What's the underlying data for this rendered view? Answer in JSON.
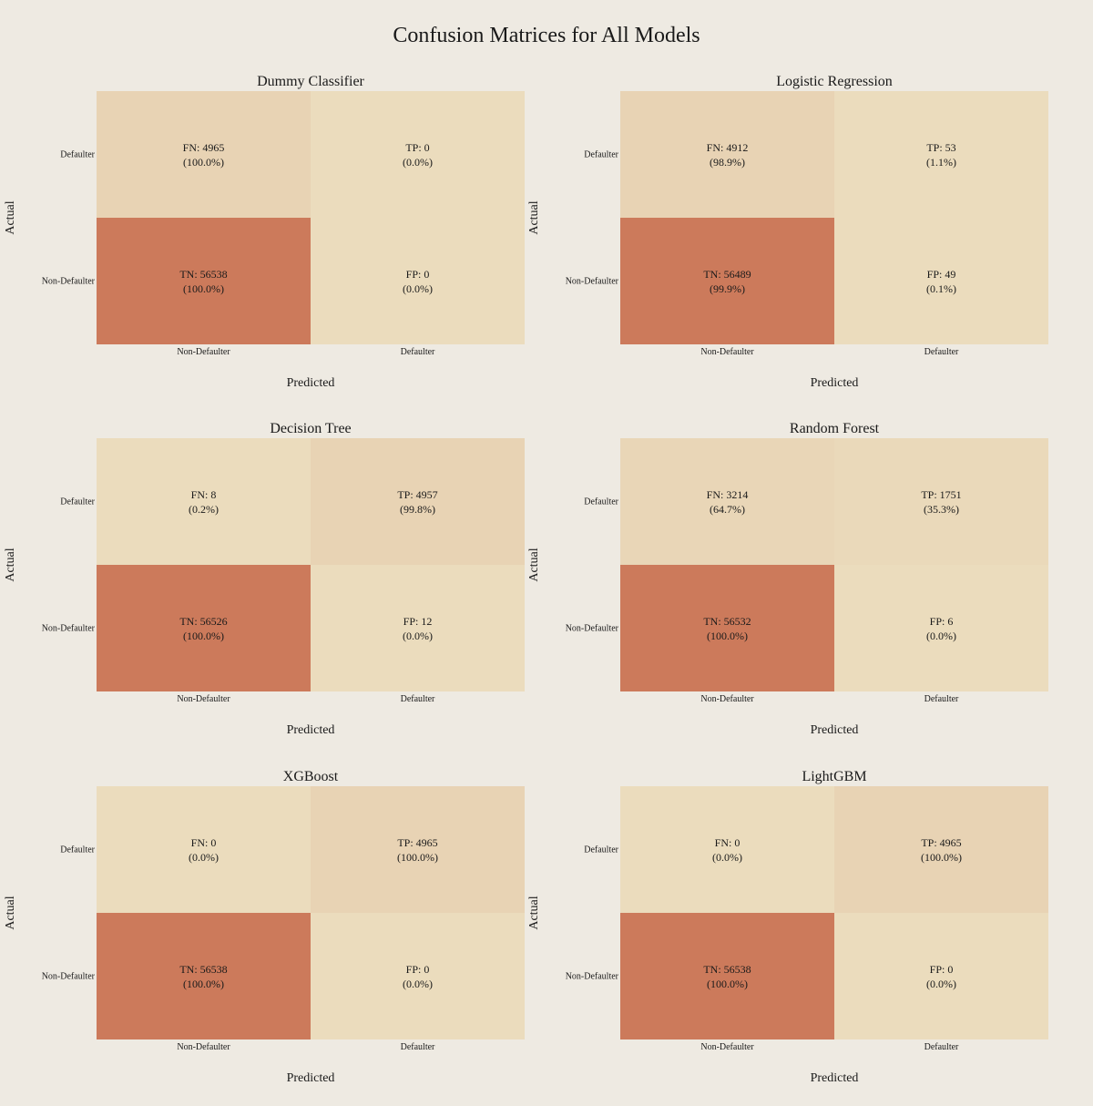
{
  "title": "Confusion Matrices for All Models",
  "colors": {
    "background": "#EEEAE2",
    "scale_low": "#EBDCBD",
    "scale_high": "#CC7A5B"
  },
  "chart_data": [
    {
      "type": "heatmap",
      "title": "Dummy Classifier",
      "xlabel": "Predicted",
      "ylabel": "Actual",
      "x_categories": [
        "Non-Defaulter",
        "Defaulter"
      ],
      "y_categories": [
        "Non-Defaulter",
        "Defaulter"
      ],
      "cells": [
        {
          "actual": "Defaulter",
          "predicted": "Non-Defaulter",
          "label": "FN",
          "count": 4965,
          "percent": "100.0%"
        },
        {
          "actual": "Defaulter",
          "predicted": "Defaulter",
          "label": "TP",
          "count": 0,
          "percent": "0.0%"
        },
        {
          "actual": "Non-Defaulter",
          "predicted": "Non-Defaulter",
          "label": "TN",
          "count": 56538,
          "percent": "100.0%"
        },
        {
          "actual": "Non-Defaulter",
          "predicted": "Defaulter",
          "label": "FP",
          "count": 0,
          "percent": "0.0%"
        }
      ]
    },
    {
      "type": "heatmap",
      "title": "Logistic Regression",
      "xlabel": "Predicted",
      "ylabel": "Actual",
      "x_categories": [
        "Non-Defaulter",
        "Defaulter"
      ],
      "y_categories": [
        "Non-Defaulter",
        "Defaulter"
      ],
      "cells": [
        {
          "actual": "Defaulter",
          "predicted": "Non-Defaulter",
          "label": "FN",
          "count": 4912,
          "percent": "98.9%"
        },
        {
          "actual": "Defaulter",
          "predicted": "Defaulter",
          "label": "TP",
          "count": 53,
          "percent": "1.1%"
        },
        {
          "actual": "Non-Defaulter",
          "predicted": "Non-Defaulter",
          "label": "TN",
          "count": 56489,
          "percent": "99.9%"
        },
        {
          "actual": "Non-Defaulter",
          "predicted": "Defaulter",
          "label": "FP",
          "count": 49,
          "percent": "0.1%"
        }
      ]
    },
    {
      "type": "heatmap",
      "title": "Decision Tree",
      "xlabel": "Predicted",
      "ylabel": "Actual",
      "x_categories": [
        "Non-Defaulter",
        "Defaulter"
      ],
      "y_categories": [
        "Non-Defaulter",
        "Defaulter"
      ],
      "cells": [
        {
          "actual": "Defaulter",
          "predicted": "Non-Defaulter",
          "label": "FN",
          "count": 8,
          "percent": "0.2%"
        },
        {
          "actual": "Defaulter",
          "predicted": "Defaulter",
          "label": "TP",
          "count": 4957,
          "percent": "99.8%"
        },
        {
          "actual": "Non-Defaulter",
          "predicted": "Non-Defaulter",
          "label": "TN",
          "count": 56526,
          "percent": "100.0%"
        },
        {
          "actual": "Non-Defaulter",
          "predicted": "Defaulter",
          "label": "FP",
          "count": 12,
          "percent": "0.0%"
        }
      ]
    },
    {
      "type": "heatmap",
      "title": "Random Forest",
      "xlabel": "Predicted",
      "ylabel": "Actual",
      "x_categories": [
        "Non-Defaulter",
        "Defaulter"
      ],
      "y_categories": [
        "Non-Defaulter",
        "Defaulter"
      ],
      "cells": [
        {
          "actual": "Defaulter",
          "predicted": "Non-Defaulter",
          "label": "FN",
          "count": 3214,
          "percent": "64.7%"
        },
        {
          "actual": "Defaulter",
          "predicted": "Defaulter",
          "label": "TP",
          "count": 1751,
          "percent": "35.3%"
        },
        {
          "actual": "Non-Defaulter",
          "predicted": "Non-Defaulter",
          "label": "TN",
          "count": 56532,
          "percent": "100.0%"
        },
        {
          "actual": "Non-Defaulter",
          "predicted": "Defaulter",
          "label": "FP",
          "count": 6,
          "percent": "0.0%"
        }
      ]
    },
    {
      "type": "heatmap",
      "title": "XGBoost",
      "xlabel": "Predicted",
      "ylabel": "Actual",
      "x_categories": [
        "Non-Defaulter",
        "Defaulter"
      ],
      "y_categories": [
        "Non-Defaulter",
        "Defaulter"
      ],
      "cells": [
        {
          "actual": "Defaulter",
          "predicted": "Non-Defaulter",
          "label": "FN",
          "count": 0,
          "percent": "0.0%"
        },
        {
          "actual": "Defaulter",
          "predicted": "Defaulter",
          "label": "TP",
          "count": 4965,
          "percent": "100.0%"
        },
        {
          "actual": "Non-Defaulter",
          "predicted": "Non-Defaulter",
          "label": "TN",
          "count": 56538,
          "percent": "100.0%"
        },
        {
          "actual": "Non-Defaulter",
          "predicted": "Defaulter",
          "label": "FP",
          "count": 0,
          "percent": "0.0%"
        }
      ]
    },
    {
      "type": "heatmap",
      "title": "LightGBM",
      "xlabel": "Predicted",
      "ylabel": "Actual",
      "x_categories": [
        "Non-Defaulter",
        "Defaulter"
      ],
      "y_categories": [
        "Non-Defaulter",
        "Defaulter"
      ],
      "cells": [
        {
          "actual": "Defaulter",
          "predicted": "Non-Defaulter",
          "label": "FN",
          "count": 0,
          "percent": "0.0%"
        },
        {
          "actual": "Defaulter",
          "predicted": "Defaulter",
          "label": "TP",
          "count": 4965,
          "percent": "100.0%"
        },
        {
          "actual": "Non-Defaulter",
          "predicted": "Non-Defaulter",
          "label": "TN",
          "count": 56538,
          "percent": "100.0%"
        },
        {
          "actual": "Non-Defaulter",
          "predicted": "Defaulter",
          "label": "FP",
          "count": 0,
          "percent": "0.0%"
        }
      ]
    }
  ]
}
